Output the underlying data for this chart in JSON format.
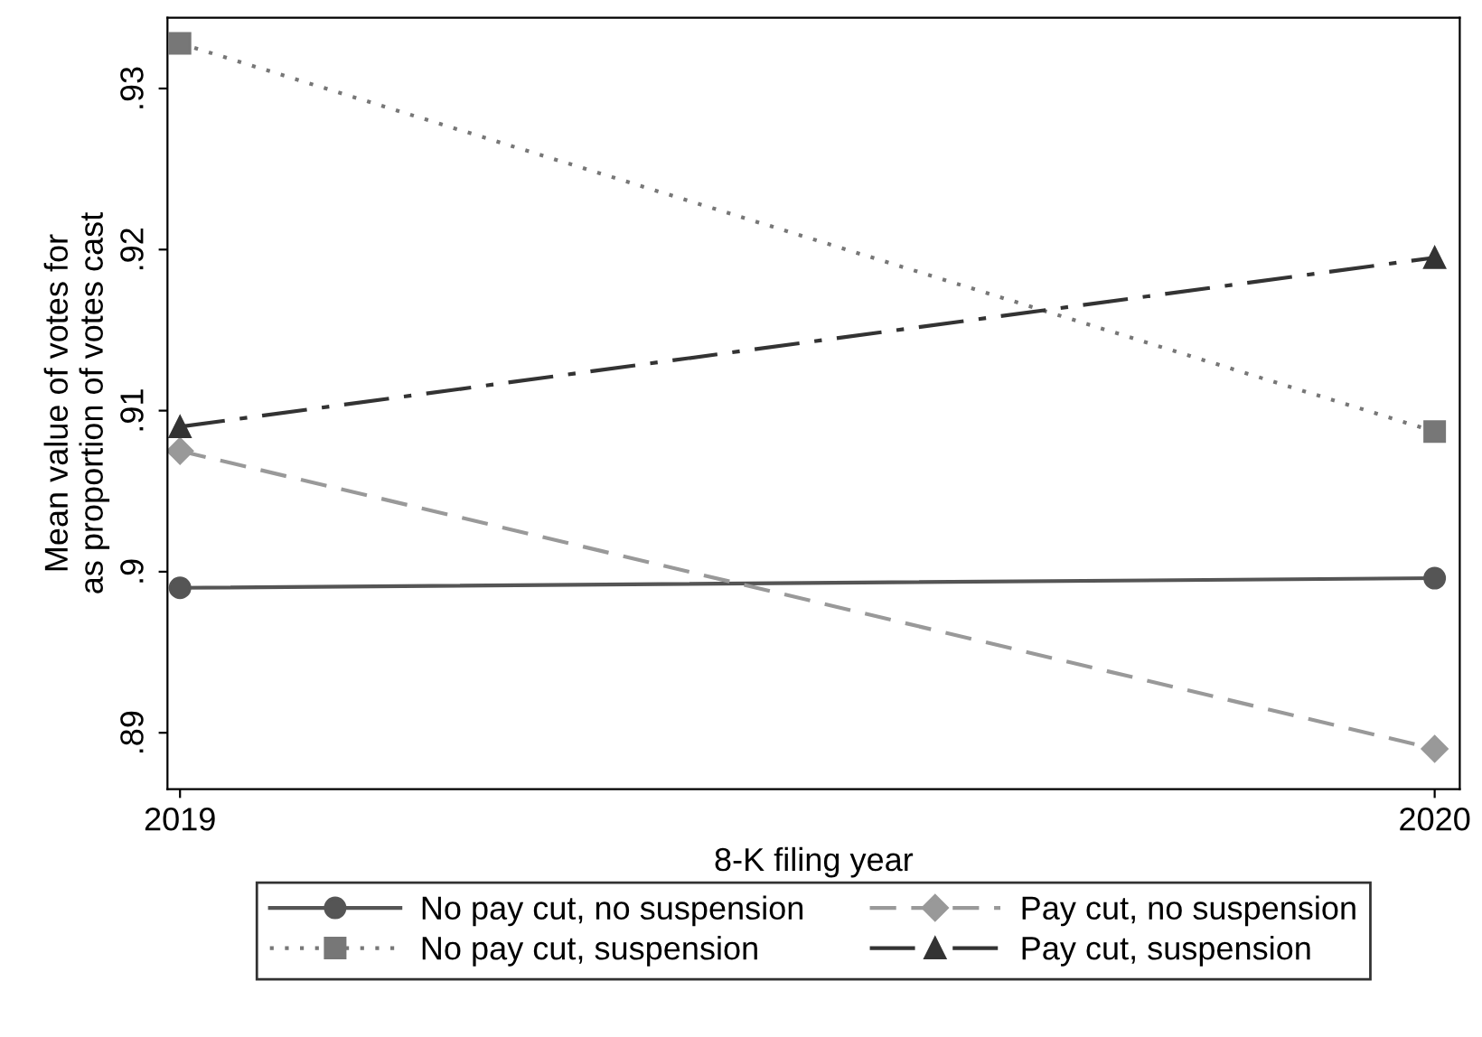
{
  "chart_data": {
    "type": "line",
    "xlabel": "8-K filing year",
    "ylabel": "Mean value of votes for\nas proportion of votes cast",
    "x": [
      2019,
      2020
    ],
    "xlim": [
      2018.99,
      2020.02
    ],
    "xticks": [
      2019,
      2020
    ],
    "ylim": [
      0.8865,
      0.9344
    ],
    "yticks": [
      {
        "value": 0.89,
        "label": ".89"
      },
      {
        "value": 0.9,
        "label": ".9"
      },
      {
        "value": 0.91,
        "label": ".91"
      },
      {
        "value": 0.92,
        "label": ".92"
      },
      {
        "value": 0.93,
        "label": ".93"
      }
    ],
    "grid": false,
    "legend": "bottom",
    "series": [
      {
        "name": "No pay cut, no suspension",
        "color": "#555555",
        "marker": "circle",
        "line_style": "solid",
        "values": [
          0.899,
          0.8996
        ]
      },
      {
        "name": "No pay cut, suspension",
        "color": "#777777",
        "marker": "square",
        "line_style": "dotted",
        "values": [
          0.9328,
          0.9087
        ]
      },
      {
        "name": "Pay cut, no suspension",
        "color": "#999999",
        "marker": "diamond",
        "line_style": "dashed",
        "values": [
          0.9075,
          0.889
        ]
      },
      {
        "name": "Pay cut, suspension",
        "color": "#333333",
        "marker": "triangle",
        "line_style": "dashdot",
        "values": [
          0.909,
          0.9195
        ]
      }
    ]
  }
}
